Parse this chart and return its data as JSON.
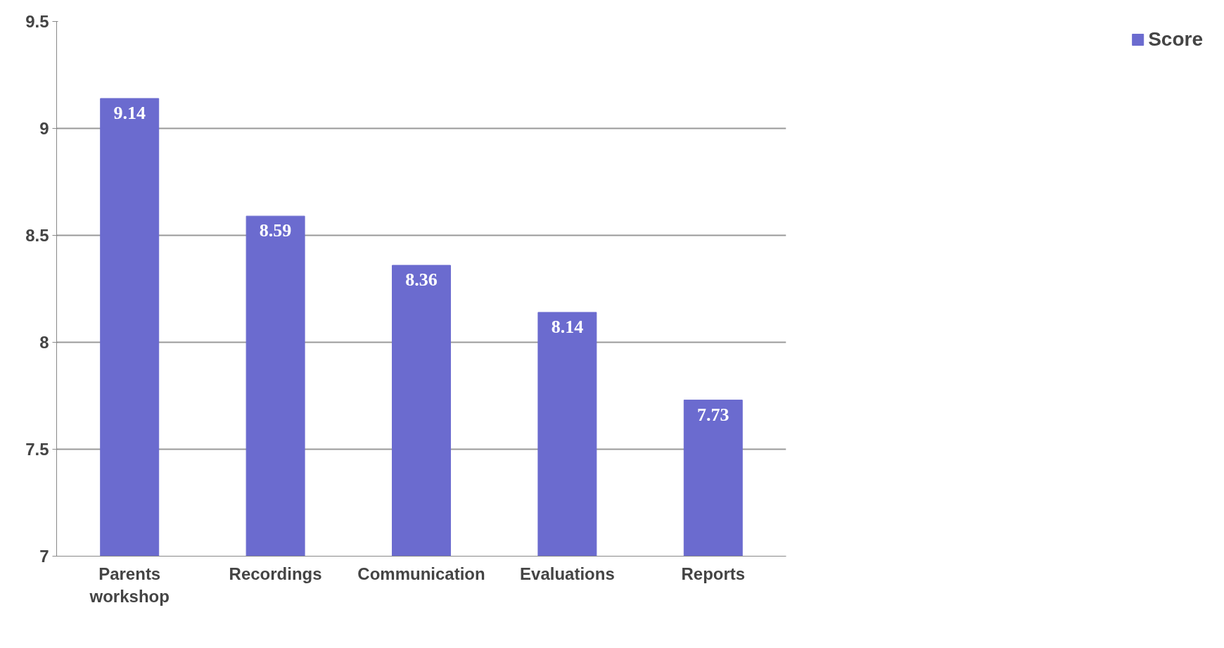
{
  "chart_data": {
    "type": "bar",
    "categories": [
      "Parents workshop",
      "Recordings",
      "Communication",
      "Evaluations",
      "Reports"
    ],
    "series": [
      {
        "name": "Score",
        "color": "#6b6bcf",
        "values": [
          9.14,
          8.59,
          8.36,
          8.14,
          7.73
        ]
      }
    ],
    "ylim": [
      7,
      9.5
    ],
    "yticks": [
      7,
      7.5,
      8,
      8.5,
      9,
      9.5
    ],
    "grid": "y",
    "legend": "right",
    "data_labels": true
  }
}
